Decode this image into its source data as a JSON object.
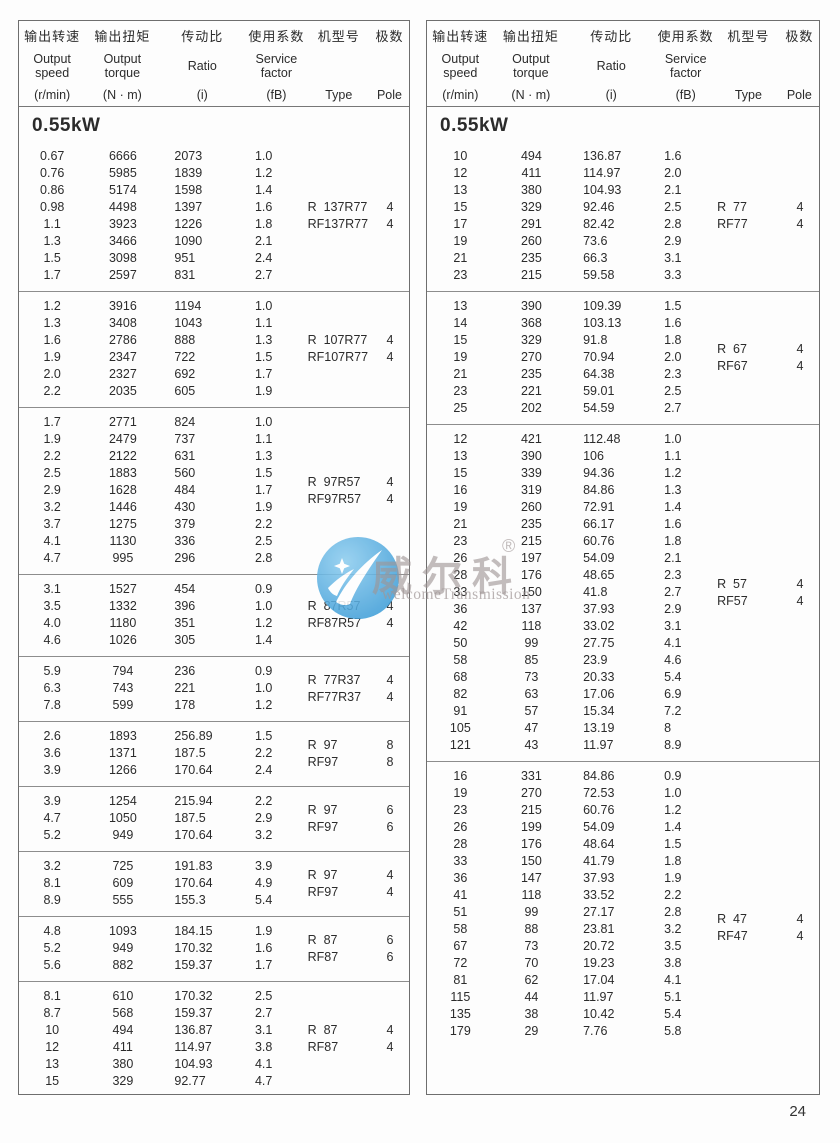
{
  "page": {
    "number": "24"
  },
  "header": {
    "columns": [
      {
        "zh": "输出转速",
        "en": "Output speed",
        "unit": "(r/min)"
      },
      {
        "zh": "输出扭矩",
        "en": "Output torque",
        "unit": "(N · m)"
      },
      {
        "zh": "传动比",
        "en": "Ratio",
        "unit": "(i)"
      },
      {
        "zh": "使用系数",
        "en": "Service factor",
        "unit": "(fB)"
      },
      {
        "zh": "机型号",
        "en": "",
        "unit": "Type"
      },
      {
        "zh": "极数",
        "en": "",
        "unit": "Pole"
      }
    ]
  },
  "watermark": {
    "brand": "威尔科",
    "registered": "®",
    "subtitle": "welcomeTransmission",
    "circle_color": "#3c9cd7"
  },
  "left_table": {
    "title": "0.55kW",
    "blocks": [
      {
        "types": [
          "R  137R77",
          "RF137R77"
        ],
        "poles": [
          "4",
          "4"
        ],
        "rows": [
          [
            "0.67",
            "6666",
            "2073",
            "1.0"
          ],
          [
            "0.76",
            "5985",
            "1839",
            "1.2"
          ],
          [
            "0.86",
            "5174",
            "1598",
            "1.4"
          ],
          [
            "0.98",
            "4498",
            "1397",
            "1.6"
          ],
          [
            "1.1",
            "3923",
            "1226",
            "1.8"
          ],
          [
            "1.3",
            "3466",
            "1090",
            "2.1"
          ],
          [
            "1.5",
            "3098",
            "951",
            "2.4"
          ],
          [
            "1.7",
            "2597",
            "831",
            "2.7"
          ]
        ]
      },
      {
        "types": [
          "R  107R77",
          "RF107R77"
        ],
        "poles": [
          "4",
          "4"
        ],
        "rows": [
          [
            "1.2",
            "3916",
            "1194",
            "1.0"
          ],
          [
            "1.3",
            "3408",
            "1043",
            "1.1"
          ],
          [
            "1.6",
            "2786",
            "888",
            "1.3"
          ],
          [
            "1.9",
            "2347",
            "722",
            "1.5"
          ],
          [
            "2.0",
            "2327",
            "692",
            "1.7"
          ],
          [
            "2.2",
            "2035",
            "605",
            "1.9"
          ]
        ]
      },
      {
        "types": [
          "R  97R57",
          "RF97R57"
        ],
        "poles": [
          "4",
          "4"
        ],
        "rows": [
          [
            "1.7",
            "2771",
            "824",
            "1.0"
          ],
          [
            "1.9",
            "2479",
            "737",
            "1.1"
          ],
          [
            "2.2",
            "2122",
            "631",
            "1.3"
          ],
          [
            "2.5",
            "1883",
            "560",
            "1.5"
          ],
          [
            "2.9",
            "1628",
            "484",
            "1.7"
          ],
          [
            "3.2",
            "1446",
            "430",
            "1.9"
          ],
          [
            "3.7",
            "1275",
            "379",
            "2.2"
          ],
          [
            "4.1",
            "1130",
            "336",
            "2.5"
          ],
          [
            "4.7",
            "995",
            "296",
            "2.8"
          ]
        ]
      },
      {
        "types": [
          "R  87R57",
          "RF87R57"
        ],
        "poles": [
          "4",
          "4"
        ],
        "rows": [
          [
            "3.1",
            "1527",
            "454",
            "0.9"
          ],
          [
            "3.5",
            "1332",
            "396",
            "1.0"
          ],
          [
            "4.0",
            "1180",
            "351",
            "1.2"
          ],
          [
            "4.6",
            "1026",
            "305",
            "1.4"
          ]
        ]
      },
      {
        "types": [
          "R  77R37",
          "RF77R37"
        ],
        "poles": [
          "4",
          "4"
        ],
        "rows": [
          [
            "5.9",
            "794",
            "236",
            "0.9"
          ],
          [
            "6.3",
            "743",
            "221",
            "1.0"
          ],
          [
            "7.8",
            "599",
            "178",
            "1.2"
          ]
        ]
      },
      {
        "types": [
          "R  97",
          "RF97"
        ],
        "poles": [
          "8",
          "8"
        ],
        "rows": [
          [
            "2.6",
            "1893",
            "256.89",
            "1.5"
          ],
          [
            "3.6",
            "1371",
            "187.5",
            "2.2"
          ],
          [
            "3.9",
            "1266",
            "170.64",
            "2.4"
          ]
        ]
      },
      {
        "types": [
          "R  97",
          "RF97"
        ],
        "poles": [
          "6",
          "6"
        ],
        "rows": [
          [
            "3.9",
            "1254",
            "215.94",
            "2.2"
          ],
          [
            "4.7",
            "1050",
            "187.5",
            "2.9"
          ],
          [
            "5.2",
            "949",
            "170.64",
            "3.2"
          ]
        ]
      },
      {
        "types": [
          "R  97",
          "RF97"
        ],
        "poles": [
          "4",
          "4"
        ],
        "rows": [
          [
            "3.2",
            "725",
            "191.83",
            "3.9"
          ],
          [
            "8.1",
            "609",
            "170.64",
            "4.9"
          ],
          [
            "8.9",
            "555",
            "155.3",
            "5.4"
          ]
        ]
      },
      {
        "types": [
          "R  87",
          "RF87"
        ],
        "poles": [
          "6",
          "6"
        ],
        "rows": [
          [
            "4.8",
            "1093",
            "184.15",
            "1.9"
          ],
          [
            "5.2",
            "949",
            "170.32",
            "1.6"
          ],
          [
            "5.6",
            "882",
            "159.37",
            "1.7"
          ]
        ]
      },
      {
        "types": [
          "R  87",
          "RF87"
        ],
        "poles": [
          "4",
          "4"
        ],
        "rows": [
          [
            "8.1",
            "610",
            "170.32",
            "2.5"
          ],
          [
            "8.7",
            "568",
            "159.37",
            "2.7"
          ],
          [
            "10",
            "494",
            "136.87",
            "3.1"
          ],
          [
            "12",
            "411",
            "114.97",
            "3.8"
          ],
          [
            "13",
            "380",
            "104.93",
            "4.1"
          ],
          [
            "15",
            "329",
            "92.77",
            "4.7"
          ]
        ]
      }
    ]
  },
  "right_table": {
    "title": "0.55kW",
    "blocks": [
      {
        "types": [
          "R  77",
          "RF77"
        ],
        "poles": [
          "4",
          "4"
        ],
        "rows": [
          [
            "10",
            "494",
            "136.87",
            "1.6"
          ],
          [
            "12",
            "411",
            "114.97",
            "2.0"
          ],
          [
            "13",
            "380",
            "104.93",
            "2.1"
          ],
          [
            "15",
            "329",
            "92.46",
            "2.5"
          ],
          [
            "17",
            "291",
            "82.42",
            "2.8"
          ],
          [
            "19",
            "260",
            "73.6",
            "2.9"
          ],
          [
            "21",
            "235",
            "66.3",
            "3.1"
          ],
          [
            "23",
            "215",
            "59.58",
            "3.3"
          ]
        ]
      },
      {
        "types": [
          "R  67",
          "RF67"
        ],
        "poles": [
          "4",
          "4"
        ],
        "rows": [
          [
            "13",
            "390",
            "109.39",
            "1.5"
          ],
          [
            "14",
            "368",
            "103.13",
            "1.6"
          ],
          [
            "15",
            "329",
            "91.8",
            "1.8"
          ],
          [
            "19",
            "270",
            "70.94",
            "2.0"
          ],
          [
            "21",
            "235",
            "64.38",
            "2.3"
          ],
          [
            "23",
            "221",
            "59.01",
            "2.5"
          ],
          [
            "25",
            "202",
            "54.59",
            "2.7"
          ]
        ]
      },
      {
        "types": [
          "R  57",
          "RF57"
        ],
        "poles": [
          "4",
          "4"
        ],
        "rows": [
          [
            "12",
            "421",
            "112.48",
            "1.0"
          ],
          [
            "13",
            "390",
            "106",
            "1.1"
          ],
          [
            "15",
            "339",
            "94.36",
            "1.2"
          ],
          [
            "16",
            "319",
            "84.86",
            "1.3"
          ],
          [
            "19",
            "260",
            "72.91",
            "1.4"
          ],
          [
            "21",
            "235",
            "66.17",
            "1.6"
          ],
          [
            "23",
            "215",
            "60.76",
            "1.8"
          ],
          [
            "26",
            "197",
            "54.09",
            "2.1"
          ],
          [
            "28",
            "176",
            "48.65",
            "2.3"
          ],
          [
            "33",
            "150",
            "41.8",
            "2.7"
          ],
          [
            "36",
            "137",
            "37.93",
            "2.9"
          ],
          [
            "42",
            "118",
            "33.02",
            "3.1"
          ],
          [
            "50",
            "99",
            "27.75",
            "4.1"
          ],
          [
            "58",
            "85",
            "23.9",
            "4.6"
          ],
          [
            "68",
            "73",
            "20.33",
            "5.4"
          ],
          [
            "82",
            "63",
            "17.06",
            "6.9"
          ],
          [
            "91",
            "57",
            "15.34",
            "7.2"
          ],
          [
            "105",
            "47",
            "13.19",
            "8"
          ],
          [
            "121",
            "43",
            "11.97",
            "8.9"
          ]
        ]
      },
      {
        "types": [
          "R  47",
          "RF47"
        ],
        "poles": [
          "4",
          "4"
        ],
        "rows": [
          [
            "16",
            "331",
            "84.86",
            "0.9"
          ],
          [
            "19",
            "270",
            "72.53",
            "1.0"
          ],
          [
            "23",
            "215",
            "60.76",
            "1.2"
          ],
          [
            "26",
            "199",
            "54.09",
            "1.4"
          ],
          [
            "28",
            "176",
            "48.64",
            "1.5"
          ],
          [
            "33",
            "150",
            "41.79",
            "1.8"
          ],
          [
            "36",
            "147",
            "37.93",
            "1.9"
          ],
          [
            "41",
            "118",
            "33.52",
            "2.2"
          ],
          [
            "51",
            "99",
            "27.17",
            "2.8"
          ],
          [
            "58",
            "88",
            "23.81",
            "3.2"
          ],
          [
            "67",
            "73",
            "20.72",
            "3.5"
          ],
          [
            "72",
            "70",
            "19.23",
            "3.8"
          ],
          [
            "81",
            "62",
            "17.04",
            "4.1"
          ],
          [
            "115",
            "44",
            "11.97",
            "5.1"
          ],
          [
            "135",
            "38",
            "10.42",
            "5.4"
          ],
          [
            "179",
            "29",
            "7.76",
            "5.8"
          ]
        ]
      }
    ]
  }
}
